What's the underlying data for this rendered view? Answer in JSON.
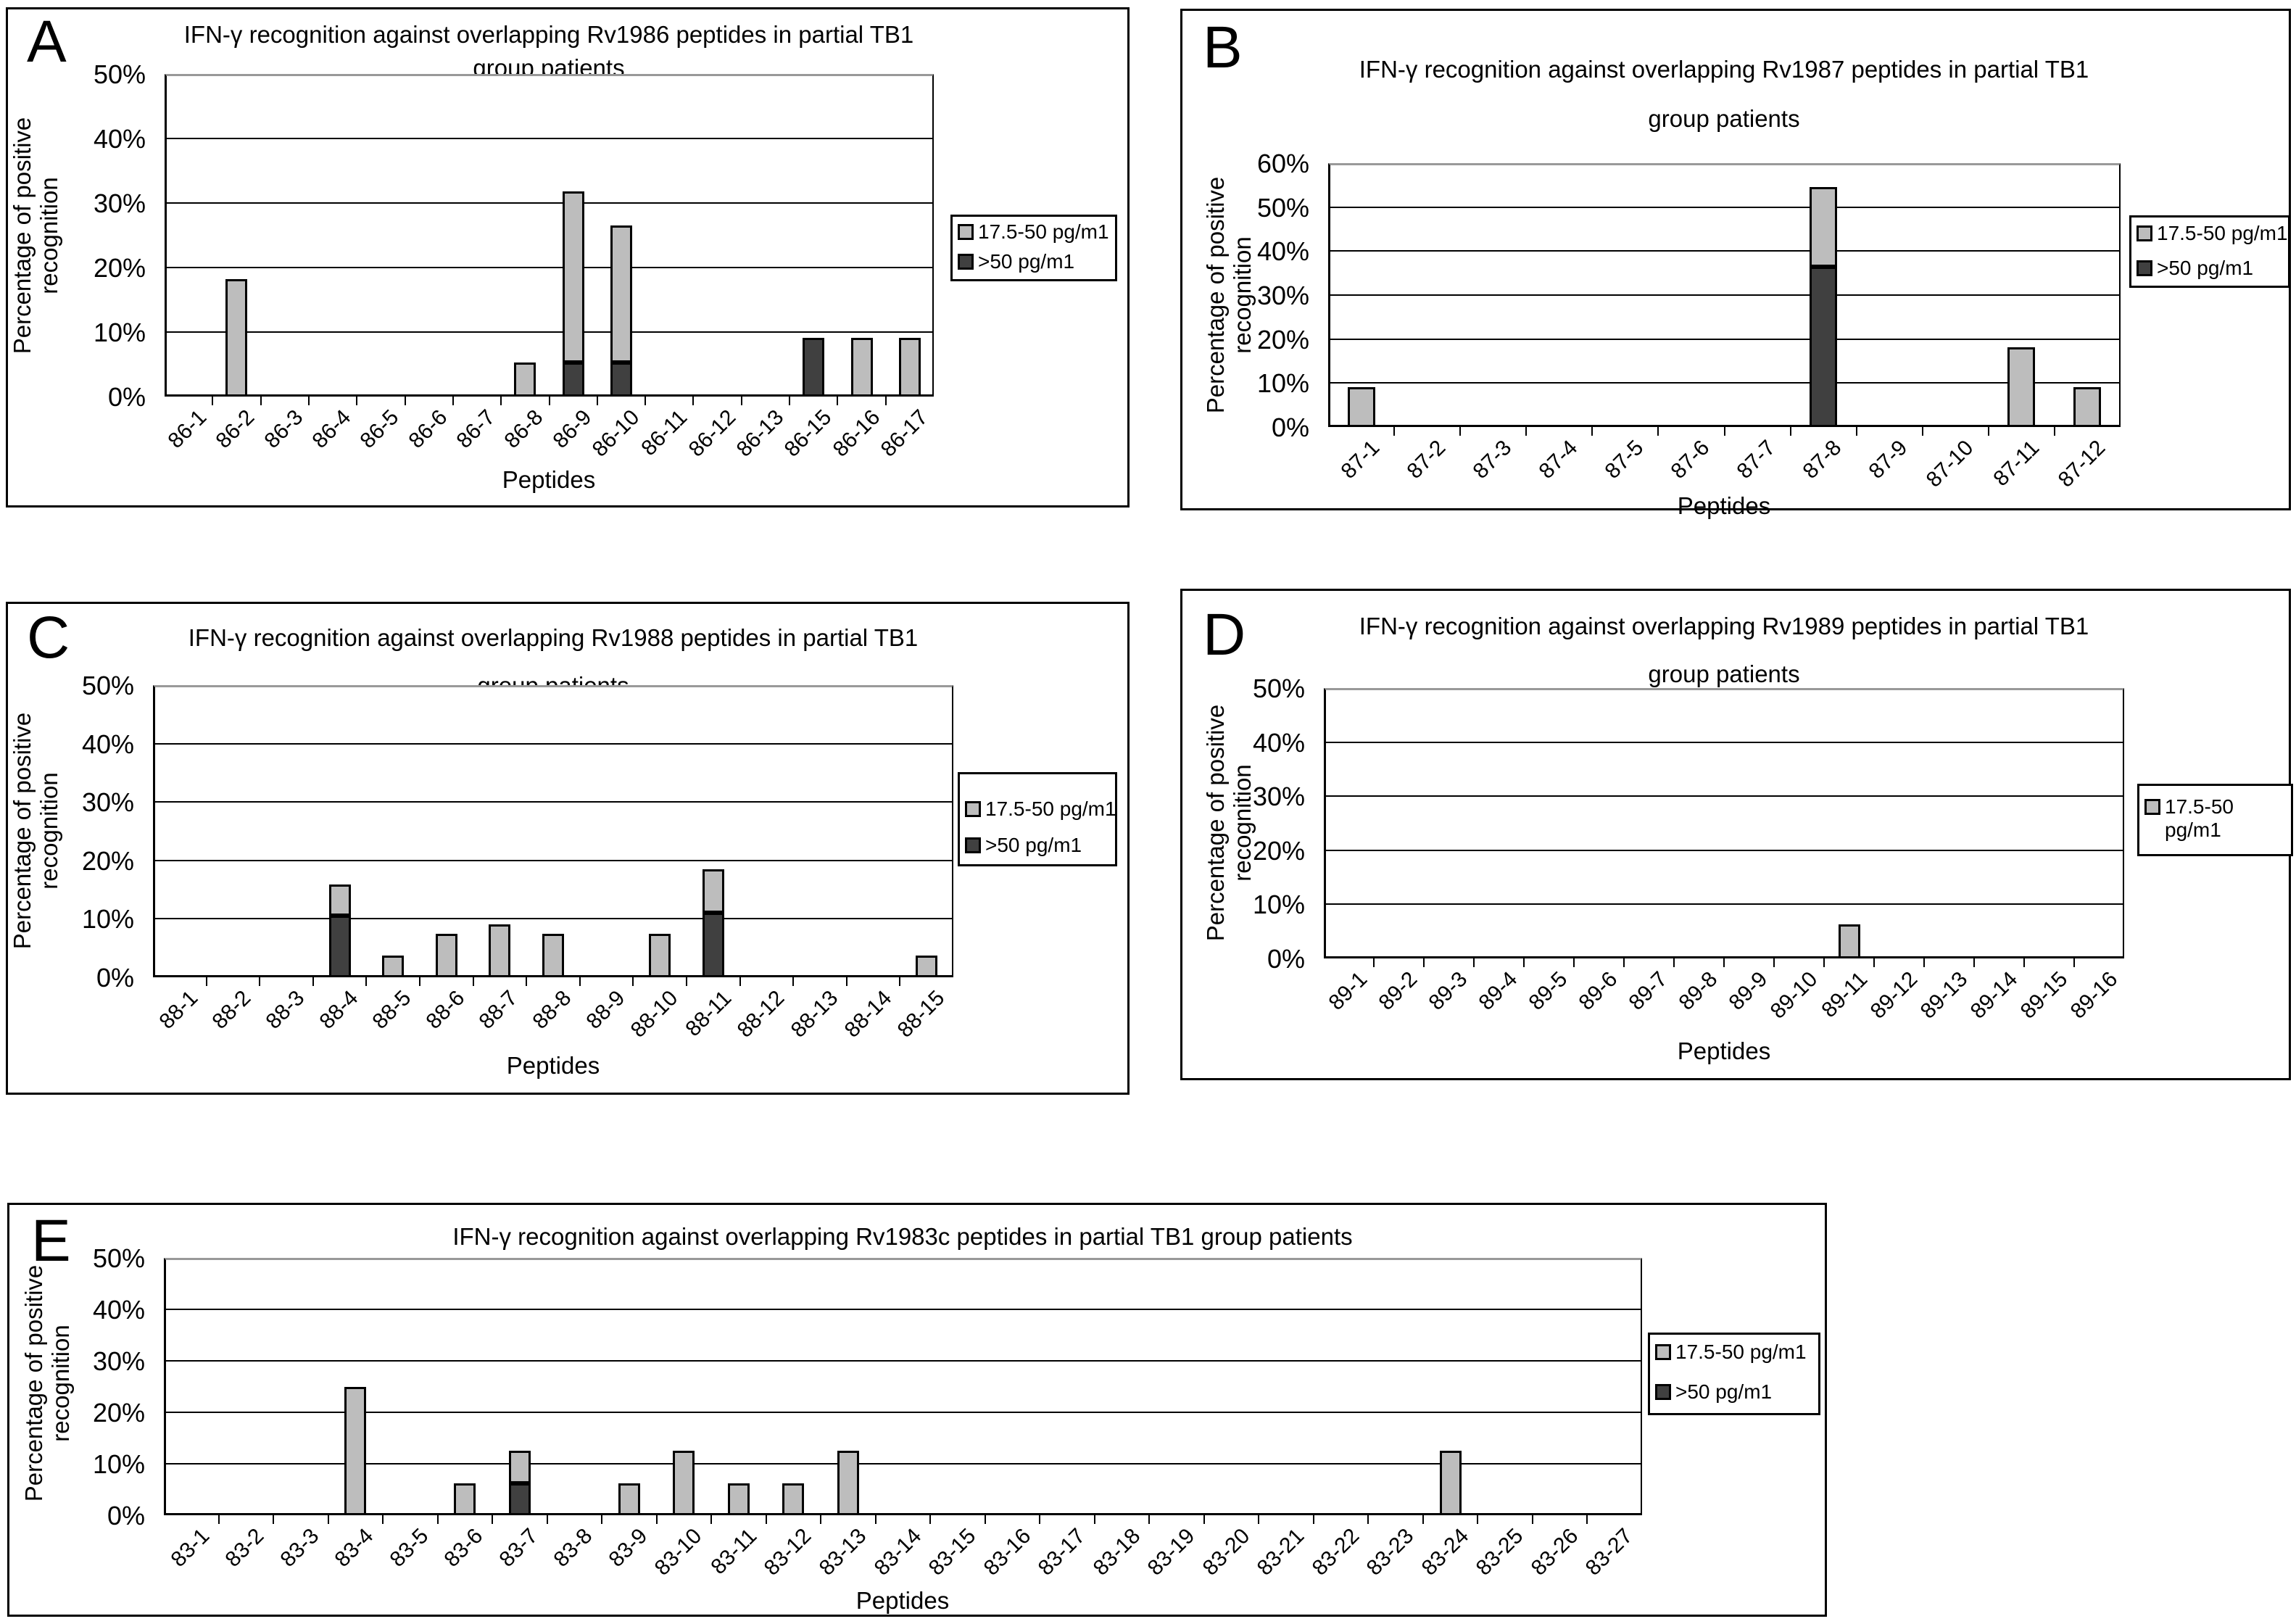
{
  "figure": {
    "background": "#ffffff"
  },
  "colors": {
    "frame": "#000000",
    "axis": "#000000",
    "grid": "#000000",
    "plot_top_border": "#999999",
    "light": "#bdbdbd",
    "dark": "#404040",
    "bar_outline": "#000000",
    "text": "#000000"
  },
  "shared": {
    "ylabel_lines": [
      "Percentage of positive",
      "recognition"
    ],
    "xlabel": "Peptides",
    "legend_light_label": "17.5-50 pg/m1",
    "legend_dark_label": ">50 pg/m1"
  },
  "chart_data": [
    {
      "id": "A",
      "panel_letter": "A",
      "type": "bar",
      "stacked": true,
      "grid": true,
      "title_lines": [
        "IFN-γ recognition against overlapping Rv1986 peptides in partial TB1",
        "group patients"
      ],
      "ylabel_lines": [
        "Percentage of positive",
        "recognition"
      ],
      "xlabel": "Peptides",
      "ylim": [
        0,
        50
      ],
      "ytick_step": 10,
      "ytick_labels": [
        "0%",
        "10%",
        "20%",
        "30%",
        "40%",
        "50%"
      ],
      "legend_position": "right",
      "legend_entries": [
        {
          "series": "light",
          "lines": [
            "17.5-50 pg/m1"
          ]
        },
        {
          "series": "dark",
          "lines": [
            ">50 pg/m1"
          ]
        }
      ],
      "categories": [
        "86-1",
        "86-2",
        "86-3",
        "86-4",
        "86-5",
        "86-6",
        "86-7",
        "86-8",
        "86-9",
        "86-10",
        "86-11",
        "86-12",
        "86-13",
        "86-15",
        "86-16",
        "86-17"
      ],
      "series": [
        {
          "key": "dark",
          "name": ">50 pg/m1",
          "values": [
            0,
            0,
            0,
            0,
            0,
            0,
            0,
            0,
            5.3,
            5.3,
            0,
            0,
            0,
            9.1,
            0,
            0
          ]
        },
        {
          "key": "light",
          "name": "17.5-50 pg/m1",
          "values": [
            0,
            18.2,
            0,
            0,
            0,
            0,
            0,
            5.3,
            26.5,
            21.2,
            0,
            0,
            0,
            0,
            9.1,
            9.1
          ]
        }
      ]
    },
    {
      "id": "B",
      "panel_letter": "B",
      "type": "bar",
      "stacked": true,
      "grid": true,
      "title_lines": [
        "IFN-γ recognition against overlapping Rv1987 peptides in partial TB1",
        "group patients"
      ],
      "ylabel_lines": [
        "Percentage of positive",
        "recognition"
      ],
      "xlabel": "Peptides",
      "ylim": [
        0,
        60
      ],
      "ytick_step": 10,
      "ytick_labels": [
        "0%",
        "10%",
        "20%",
        "30%",
        "40%",
        "50%",
        "60%"
      ],
      "legend_position": "right",
      "legend_entries": [
        {
          "series": "light",
          "lines": [
            "17.5-50 pg/m1"
          ]
        },
        {
          "series": "dark",
          "lines": [
            ">50 pg/m1"
          ]
        }
      ],
      "categories": [
        "87-1",
        "87-2",
        "87-3",
        "87-4",
        "87-5",
        "87-6",
        "87-7",
        "87-8",
        "87-9",
        "87-10",
        "87-11",
        "87-12"
      ],
      "series": [
        {
          "key": "dark",
          "name": ">50 pg/m1",
          "values": [
            0,
            0,
            0,
            0,
            0,
            0,
            0,
            36.4,
            0,
            0,
            0,
            0
          ]
        },
        {
          "key": "light",
          "name": "17.5-50 pg/m1",
          "values": [
            9.1,
            0,
            0,
            0,
            0,
            0,
            0,
            18.2,
            0,
            0,
            18.2,
            9.1
          ]
        }
      ]
    },
    {
      "id": "C",
      "panel_letter": "C",
      "type": "bar",
      "stacked": true,
      "grid": true,
      "title_lines": [
        "IFN-γ recognition against overlapping Rv1988 peptides in partial TB1",
        "group patients"
      ],
      "ylabel_lines": [
        "Percentage of positive",
        "recognition"
      ],
      "xlabel": "Peptides",
      "ylim": [
        0,
        50
      ],
      "ytick_step": 10,
      "ytick_labels": [
        "0%",
        "10%",
        "20%",
        "30%",
        "40%",
        "50%"
      ],
      "legend_position": "right",
      "legend_entries": [
        {
          "series": "light",
          "lines": [
            "17.5-50 pg/m1"
          ]
        },
        {
          "series": "dark",
          "lines": [
            ">50 pg/m1"
          ]
        }
      ],
      "categories": [
        "88-1",
        "88-2",
        "88-3",
        "88-4",
        "88-5",
        "88-6",
        "88-7",
        "88-8",
        "88-9",
        "88-10",
        "88-11",
        "88-12",
        "88-13",
        "88-14",
        "88-15"
      ],
      "series": [
        {
          "key": "dark",
          "name": ">50 pg/m1",
          "values": [
            0,
            0,
            0,
            10.5,
            0,
            0,
            0,
            0,
            0,
            0,
            11.1,
            0,
            0,
            0,
            0
          ]
        },
        {
          "key": "light",
          "name": "17.5-50 pg/m1",
          "values": [
            0,
            0,
            0,
            5.4,
            3.7,
            7.4,
            9.0,
            7.4,
            0,
            7.4,
            7.4,
            0,
            0,
            0,
            3.7
          ]
        }
      ]
    },
    {
      "id": "D",
      "panel_letter": "D",
      "type": "bar",
      "stacked": true,
      "grid": true,
      "title_lines": [
        "IFN-γ recognition against overlapping Rv1989 peptides in partial TB1",
        "group patients"
      ],
      "ylabel_lines": [
        "Percentage of positive",
        "recognition"
      ],
      "xlabel": "Peptides",
      "ylim": [
        0,
        50
      ],
      "ytick_step": 10,
      "ytick_labels": [
        "0%",
        "10%",
        "20%",
        "30%",
        "40%",
        "50%"
      ],
      "legend_position": "right",
      "legend_entries": [
        {
          "series": "light",
          "lines": [
            "17.5-50",
            "pg/m1"
          ]
        }
      ],
      "categories": [
        "89-1",
        "89-2",
        "89-3",
        "89-4",
        "89-5",
        "89-6",
        "89-7",
        "89-8",
        "89-9",
        "89-10",
        "89-11",
        "89-12",
        "89-13",
        "89-14",
        "89-15",
        "89-16"
      ],
      "series": [
        {
          "key": "light",
          "name": "17.5-50 pg/m1",
          "values": [
            0,
            0,
            0,
            0,
            0,
            0,
            0,
            0,
            0,
            0,
            6.3,
            0,
            0,
            0,
            0,
            0
          ]
        }
      ]
    },
    {
      "id": "E",
      "panel_letter": "E",
      "type": "bar",
      "stacked": true,
      "grid": true,
      "title_lines": [
        "IFN-γ recognition against overlapping Rv1983c peptides in partial TB1 group patients"
      ],
      "ylabel_lines": [
        "Percentage of positive",
        "recognition"
      ],
      "xlabel": "Peptides",
      "ylim": [
        0,
        50
      ],
      "ytick_step": 10,
      "ytick_labels": [
        "0%",
        "10%",
        "20%",
        "30%",
        "40%",
        "50%"
      ],
      "legend_position": "right",
      "legend_entries": [
        {
          "series": "light",
          "lines": [
            "17.5-50 pg/m1"
          ]
        },
        {
          "series": "dark",
          "lines": [
            ">50 pg/m1"
          ]
        }
      ],
      "categories": [
        "83-1",
        "83-2",
        "83-3",
        "83-4",
        "83-5",
        "83-6",
        "83-7",
        "83-8",
        "83-9",
        "83-10",
        "83-11",
        "83-12",
        "83-13",
        "83-14",
        "83-15",
        "83-16",
        "83-17",
        "83-18",
        "83-19",
        "83-20",
        "83-21",
        "83-22",
        "83-23",
        "83-24",
        "83-25",
        "83-26",
        "83-27"
      ],
      "series": [
        {
          "key": "dark",
          "name": ">50 pg/m1",
          "values": [
            0,
            0,
            0,
            0,
            0,
            0,
            6.25,
            0,
            0,
            0,
            0,
            0,
            0,
            0,
            0,
            0,
            0,
            0,
            0,
            0,
            0,
            0,
            0,
            0,
            0,
            0,
            0
          ]
        },
        {
          "key": "light",
          "name": "17.5-50 pg/m1",
          "values": [
            0,
            0,
            0,
            25,
            0,
            6.25,
            6.25,
            0,
            6.25,
            12.5,
            6.25,
            6.25,
            12.5,
            0,
            0,
            0,
            0,
            0,
            0,
            0,
            0,
            0,
            0,
            12.5,
            0,
            0,
            0
          ]
        }
      ]
    }
  ]
}
